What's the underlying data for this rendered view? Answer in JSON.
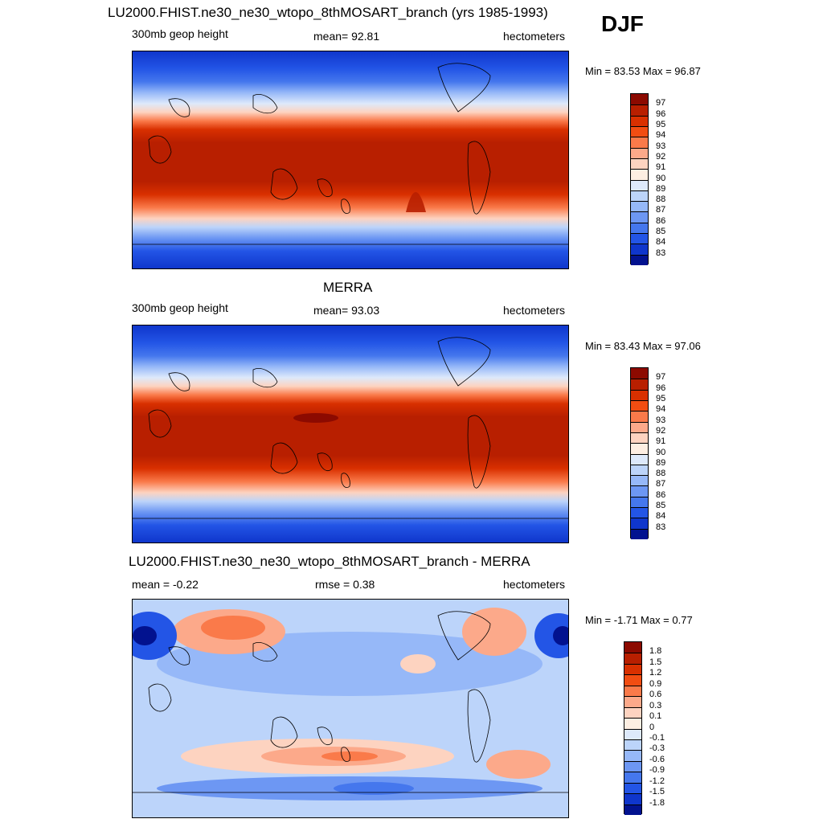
{
  "header": {
    "season": "DJF"
  },
  "panels": [
    {
      "id": "model",
      "title": "LU2000.FHIST.ne30_ne30_wtopo_8thMOSART_branch (yrs 1985-1993)",
      "left_label": "300mb geop height",
      "center_label": "mean=  92.81",
      "right_label": "hectometers",
      "minmax": "Min =  83.53 Max =  96.87"
    },
    {
      "id": "merra",
      "title": "MERRA",
      "left_label": "300mb geop height",
      "center_label": "mean=  93.03",
      "right_label": "hectometers",
      "minmax": "Min =  83.43 Max =  97.06"
    },
    {
      "id": "diff",
      "title": "LU2000.FHIST.ne30_ne30_wtopo_8thMOSART_branch - MERRA",
      "left_label": "mean =  -0.22",
      "center_label": "rmse =   0.38",
      "right_label": "hectometers",
      "minmax": "Min =  -1.71 Max =   0.77"
    }
  ],
  "colorbars": {
    "height": {
      "labels": [
        "97",
        "96",
        "95",
        "94",
        "93",
        "92",
        "91",
        "90",
        "89",
        "88",
        "87",
        "86",
        "85",
        "84",
        "83"
      ],
      "colors": [
        "#8c0a00",
        "#b81f00",
        "#d93000",
        "#f24d12",
        "#fa7a4a",
        "#fca98a",
        "#fdd3c0",
        "#fdeee2",
        "#dde9fb",
        "#bcd4fa",
        "#96b8f8",
        "#6d97f3",
        "#4577ed",
        "#2355e6",
        "#0f36cc",
        "#02128f"
      ]
    },
    "diff": {
      "labels": [
        "1.8",
        "1.5",
        "1.2",
        "0.9",
        "0.6",
        "0.3",
        "0.1",
        "0",
        "-0.1",
        "-0.3",
        "-0.6",
        "-0.9",
        "-1.2",
        "-1.5",
        "-1.8"
      ],
      "colors": [
        "#8c0a00",
        "#b81f00",
        "#d93000",
        "#f24d12",
        "#fa7a4a",
        "#fca98a",
        "#fdd3c0",
        "#fdeee2",
        "#dde9fb",
        "#bcd4fa",
        "#96b8f8",
        "#6d97f3",
        "#4577ed",
        "#2355e6",
        "#0f36cc",
        "#02128f"
      ]
    }
  }
}
